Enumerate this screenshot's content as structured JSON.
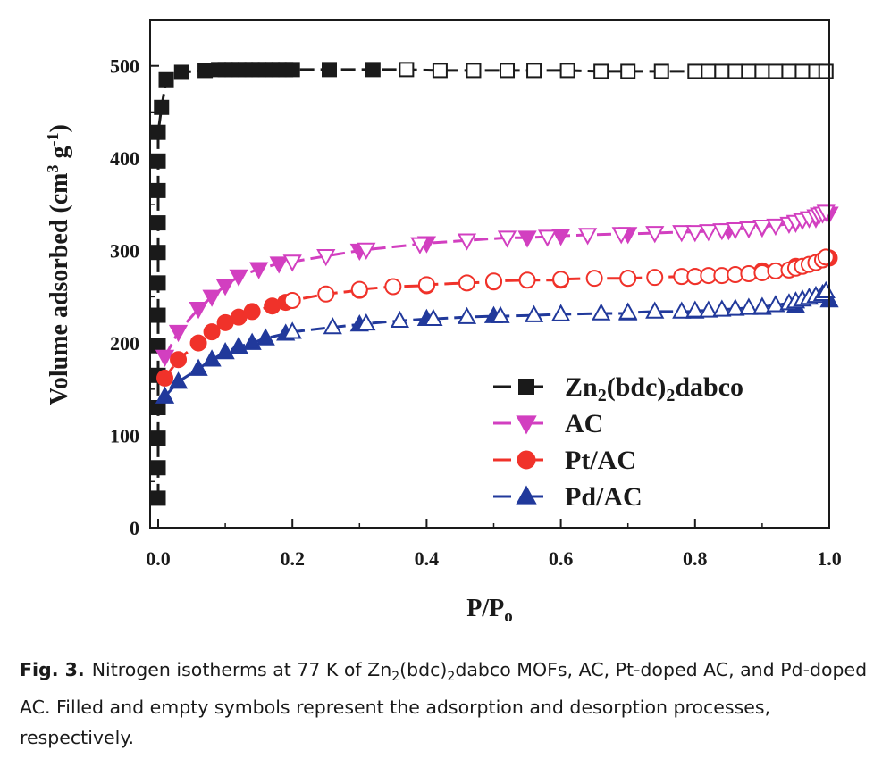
{
  "chart_data": {
    "type": "scatter",
    "xlabel_main": "P/P",
    "xlabel_sub": "o",
    "ylabel": {
      "main": "Volume adsorbed (cm",
      "sup1": "3",
      "mid": " g",
      "sup2": "-1",
      "end": ")"
    },
    "xlim": [
      0.0,
      1.0
    ],
    "ylim": [
      0,
      550
    ],
    "xticks": [
      "0.0",
      "0.2",
      "0.4",
      "0.6",
      "0.8",
      "1.0"
    ],
    "yticks": [
      "0",
      "100",
      "200",
      "300",
      "400",
      "500"
    ],
    "legend_position": "lower-right",
    "series": [
      {
        "legend": {
          "main": "Zn",
          "sub1": "2",
          "mid": "(bdc)",
          "sub2": "2",
          "end": "dabco"
        },
        "color": "#1a1a1a",
        "marker": "square",
        "adsorption": [
          [
            0.0,
            32
          ],
          [
            0.0,
            65
          ],
          [
            0.0,
            97
          ],
          [
            0.0,
            130
          ],
          [
            0.0,
            165
          ],
          [
            0.0,
            197
          ],
          [
            0.0,
            230
          ],
          [
            0.0,
            265
          ],
          [
            0.0,
            298
          ],
          [
            0.0,
            330
          ],
          [
            0.0,
            365
          ],
          [
            0.0,
            397
          ],
          [
            0.0,
            428
          ],
          [
            0.005,
            455
          ],
          [
            0.012,
            485
          ],
          [
            0.035,
            493
          ],
          [
            0.07,
            495
          ],
          [
            0.09,
            496
          ],
          [
            0.1,
            496
          ],
          [
            0.11,
            496
          ],
          [
            0.12,
            496
          ],
          [
            0.13,
            496
          ],
          [
            0.14,
            496
          ],
          [
            0.15,
            496
          ],
          [
            0.16,
            496
          ],
          [
            0.17,
            496
          ],
          [
            0.18,
            496
          ],
          [
            0.19,
            496
          ],
          [
            0.2,
            496
          ],
          [
            0.255,
            496
          ],
          [
            0.32,
            496
          ]
        ],
        "desorption": [
          [
            0.37,
            496
          ],
          [
            0.42,
            495
          ],
          [
            0.47,
            495
          ],
          [
            0.52,
            495
          ],
          [
            0.56,
            495
          ],
          [
            0.61,
            495
          ],
          [
            0.66,
            494
          ],
          [
            0.7,
            494
          ],
          [
            0.75,
            494
          ],
          [
            0.8,
            494
          ],
          [
            0.82,
            494
          ],
          [
            0.84,
            494
          ],
          [
            0.86,
            494
          ],
          [
            0.88,
            494
          ],
          [
            0.9,
            494
          ],
          [
            0.92,
            494
          ],
          [
            0.94,
            494
          ],
          [
            0.96,
            494
          ],
          [
            0.98,
            494
          ],
          [
            0.995,
            494
          ]
        ]
      },
      {
        "legend": {
          "main": "AC"
        },
        "color": "#d23fc0",
        "marker": "triangle-down",
        "adsorption": [
          [
            0.01,
            185
          ],
          [
            0.03,
            212
          ],
          [
            0.06,
            237
          ],
          [
            0.08,
            250
          ],
          [
            0.1,
            262
          ],
          [
            0.12,
            272
          ],
          [
            0.15,
            280
          ],
          [
            0.18,
            286
          ],
          [
            0.3,
            300
          ],
          [
            0.4,
            308
          ],
          [
            0.55,
            314
          ],
          [
            0.6,
            316
          ],
          [
            0.7,
            318
          ],
          [
            0.85,
            322
          ],
          [
            0.9,
            325
          ],
          [
            0.95,
            330
          ],
          [
            0.98,
            335
          ],
          [
            1.0,
            340
          ]
        ],
        "desorption": [
          [
            0.2,
            288
          ],
          [
            0.25,
            294
          ],
          [
            0.31,
            301
          ],
          [
            0.39,
            307
          ],
          [
            0.46,
            311
          ],
          [
            0.52,
            314
          ],
          [
            0.58,
            315
          ],
          [
            0.64,
            317
          ],
          [
            0.69,
            318
          ],
          [
            0.74,
            319
          ],
          [
            0.78,
            320
          ],
          [
            0.8,
            320
          ],
          [
            0.82,
            321
          ],
          [
            0.84,
            322
          ],
          [
            0.86,
            323
          ],
          [
            0.88,
            324
          ],
          [
            0.9,
            326
          ],
          [
            0.92,
            327
          ],
          [
            0.94,
            329
          ],
          [
            0.95,
            331
          ],
          [
            0.96,
            333
          ],
          [
            0.97,
            335
          ],
          [
            0.98,
            337
          ],
          [
            0.985,
            339
          ],
          [
            0.99,
            340
          ],
          [
            0.995,
            342
          ]
        ]
      },
      {
        "legend": {
          "main": "Pt/AC"
        },
        "color": "#f0322a",
        "marker": "circle",
        "adsorption": [
          [
            0.01,
            162
          ],
          [
            0.03,
            182
          ],
          [
            0.06,
            200
          ],
          [
            0.08,
            212
          ],
          [
            0.1,
            222
          ],
          [
            0.12,
            228
          ],
          [
            0.14,
            234
          ],
          [
            0.17,
            240
          ],
          [
            0.19,
            244
          ],
          [
            0.3,
            257
          ],
          [
            0.4,
            262
          ],
          [
            0.5,
            266
          ],
          [
            0.6,
            268
          ],
          [
            0.7,
            270
          ],
          [
            0.8,
            272
          ],
          [
            0.9,
            278
          ],
          [
            0.95,
            283
          ],
          [
            1.0,
            292
          ]
        ],
        "desorption": [
          [
            0.2,
            246
          ],
          [
            0.25,
            253
          ],
          [
            0.3,
            258
          ],
          [
            0.35,
            261
          ],
          [
            0.4,
            263
          ],
          [
            0.46,
            265
          ],
          [
            0.5,
            267
          ],
          [
            0.55,
            268
          ],
          [
            0.6,
            269
          ],
          [
            0.65,
            270
          ],
          [
            0.7,
            270
          ],
          [
            0.74,
            271
          ],
          [
            0.78,
            272
          ],
          [
            0.8,
            272
          ],
          [
            0.82,
            273
          ],
          [
            0.84,
            273
          ],
          [
            0.86,
            274
          ],
          [
            0.88,
            275
          ],
          [
            0.9,
            276
          ],
          [
            0.92,
            278
          ],
          [
            0.94,
            279
          ],
          [
            0.95,
            281
          ],
          [
            0.96,
            283
          ],
          [
            0.97,
            285
          ],
          [
            0.98,
            287
          ],
          [
            0.99,
            290
          ],
          [
            0.995,
            293
          ]
        ]
      },
      {
        "legend": {
          "main": "Pd/AC"
        },
        "color": "#21399b",
        "marker": "triangle-up",
        "adsorption": [
          [
            0.01,
            142
          ],
          [
            0.03,
            158
          ],
          [
            0.06,
            172
          ],
          [
            0.08,
            182
          ],
          [
            0.1,
            190
          ],
          [
            0.12,
            196
          ],
          [
            0.14,
            200
          ],
          [
            0.16,
            205
          ],
          [
            0.19,
            210
          ],
          [
            0.3,
            220
          ],
          [
            0.4,
            226
          ],
          [
            0.5,
            229
          ],
          [
            0.6,
            231
          ],
          [
            0.7,
            232
          ],
          [
            0.8,
            234
          ],
          [
            0.9,
            238
          ],
          [
            0.95,
            240
          ],
          [
            1.0,
            246
          ]
        ],
        "desorption": [
          [
            0.2,
            212
          ],
          [
            0.26,
            217
          ],
          [
            0.31,
            221
          ],
          [
            0.36,
            224
          ],
          [
            0.41,
            226
          ],
          [
            0.46,
            228
          ],
          [
            0.51,
            229
          ],
          [
            0.56,
            230
          ],
          [
            0.6,
            231
          ],
          [
            0.66,
            232
          ],
          [
            0.7,
            233
          ],
          [
            0.74,
            234
          ],
          [
            0.78,
            234
          ],
          [
            0.8,
            235
          ],
          [
            0.82,
            235
          ],
          [
            0.84,
            236
          ],
          [
            0.86,
            237
          ],
          [
            0.88,
            238
          ],
          [
            0.9,
            239
          ],
          [
            0.92,
            241
          ],
          [
            0.94,
            243
          ],
          [
            0.95,
            245
          ],
          [
            0.96,
            247
          ],
          [
            0.97,
            249
          ],
          [
            0.98,
            251
          ],
          [
            0.99,
            253
          ],
          [
            0.995,
            256
          ]
        ]
      }
    ]
  },
  "caption": {
    "label": "Fig. 3.",
    "text_a": "Nitrogen isotherms at 77 K of Zn",
    "sub1": "2",
    "text_b": "(bdc)",
    "sub2": "2",
    "text_c": "dabco MOFs, AC, Pt-doped AC, and Pd-doped AC. Filled and empty symbols represent the adsorption and desorption processes, respectively."
  }
}
